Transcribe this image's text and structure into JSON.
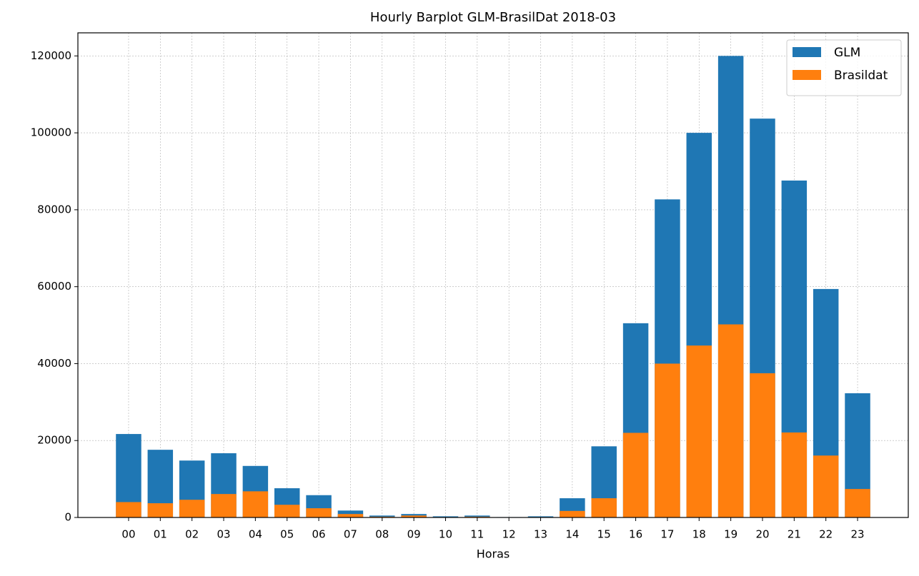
{
  "chart_data": {
    "type": "bar",
    "title": "Hourly Barplot GLM-BrasilDat 2018-03",
    "x_label": "Horas",
    "categories": [
      "00",
      "01",
      "02",
      "03",
      "04",
      "05",
      "06",
      "07",
      "08",
      "09",
      "10",
      "11",
      "12",
      "13",
      "14",
      "15",
      "16",
      "17",
      "18",
      "19",
      "20",
      "21",
      "22",
      "23"
    ],
    "series": [
      {
        "name": "GLM",
        "color": "#1f77b4",
        "values": [
          21700,
          17600,
          14800,
          16700,
          13400,
          7600,
          5800,
          1800,
          500,
          900,
          300,
          500,
          100,
          300,
          5000,
          18500,
          50500,
          82700,
          100000,
          120000,
          103700,
          87600,
          59400,
          32300
        ]
      },
      {
        "name": "Brasildat",
        "color": "#ff7f0e",
        "values": [
          4000,
          3700,
          4600,
          6100,
          6800,
          3300,
          2400,
          900,
          200,
          500,
          100,
          200,
          50,
          100,
          1700,
          5000,
          22000,
          40000,
          44700,
          50200,
          37500,
          22100,
          16100,
          7400
        ]
      }
    ],
    "overlap": true,
    "ylim": [
      0,
      126000
    ],
    "yticks": [
      0,
      20000,
      40000,
      60000,
      80000,
      100000,
      120000
    ],
    "grid": true,
    "legend": "upper right"
  }
}
